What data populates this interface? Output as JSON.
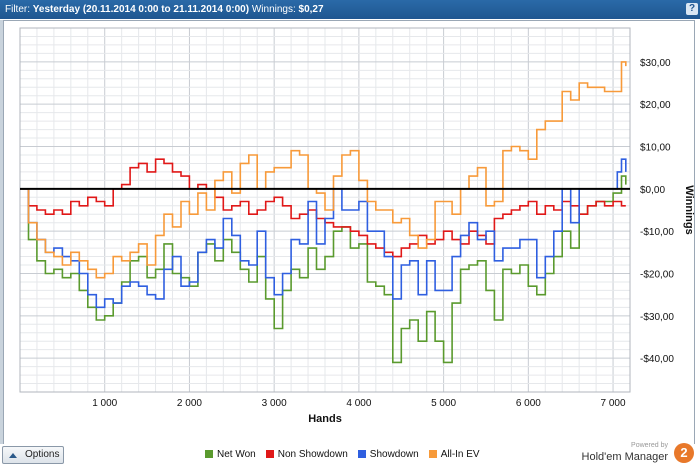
{
  "titlebar": {
    "filter_label": "Filter:",
    "filter_value": "Yesterday (20.11.2014 0:00 to 21.11.2014 0:00)",
    "winnings_label": "Winnings:",
    "winnings_value": "$0,27",
    "help": "?"
  },
  "options_label": "Options",
  "branding": {
    "powered_by": "Powered by",
    "product": "Hold'em Manager",
    "logo_text": "2"
  },
  "colors": {
    "net_won": "#5a9a2e",
    "non_showdown": "#e01818",
    "showdown": "#2f5fe0",
    "allin_ev": "#f79a3a",
    "zero_line": "#000000"
  },
  "chart_data": {
    "type": "line",
    "xlabel": "Hands",
    "ylabel": "Winnings",
    "xlim": [
      0,
      7200
    ],
    "ylim": [
      -48,
      38
    ],
    "x_ticks": [
      1000,
      2000,
      3000,
      4000,
      5000,
      6000,
      7000
    ],
    "x_tick_labels": [
      "1 000",
      "2 000",
      "3 000",
      "4 000",
      "5 000",
      "6 000",
      "7 000"
    ],
    "y_ticks": [
      30,
      20,
      10,
      0,
      -10,
      -20,
      -30,
      -40
    ],
    "y_tick_labels": [
      "$30,00",
      "$20,00",
      "$10,00",
      "$0,00",
      "-$10,00",
      "-$20,00",
      "-$30,00",
      "-$40,00"
    ],
    "grid": true,
    "legend_position": "bottom",
    "series": [
      {
        "name": "Net Won",
        "color": "#5a9a2e",
        "x": [
          0,
          100,
          200,
          300,
          400,
          500,
          600,
          700,
          800,
          900,
          1000,
          1100,
          1200,
          1300,
          1400,
          1500,
          1600,
          1700,
          1800,
          1900,
          2000,
          2100,
          2200,
          2300,
          2400,
          2500,
          2600,
          2700,
          2800,
          2900,
          3000,
          3100,
          3200,
          3300,
          3400,
          3500,
          3600,
          3700,
          3800,
          3900,
          4000,
          4100,
          4200,
          4300,
          4400,
          4500,
          4600,
          4700,
          4800,
          4900,
          5000,
          5100,
          5200,
          5300,
          5400,
          5500,
          5600,
          5700,
          5800,
          5900,
          6000,
          6100,
          6200,
          6300,
          6400,
          6500,
          6600,
          6700,
          6800,
          6900,
          7000,
          7100,
          7150
        ],
        "y": [
          0,
          -12,
          -17,
          -20,
          -19,
          -21,
          -20,
          -24,
          -28,
          -31,
          -30,
          -27,
          -22,
          -17,
          -16,
          -21,
          -19,
          -13,
          -20,
          -21,
          -23,
          -15,
          -13,
          -17,
          -12,
          -15,
          -19,
          -22,
          -16,
          -26,
          -33,
          -24,
          -19,
          -21,
          -14,
          -19,
          -16,
          -10,
          -9,
          -14,
          -13,
          -22,
          -23,
          -25,
          -41,
          -33,
          -31,
          -36,
          -29,
          -36,
          -41,
          -27,
          -19,
          -18,
          -17,
          -24,
          -31,
          -19,
          -20,
          -18,
          -23,
          -25,
          -20,
          -16,
          -10,
          -14,
          -6,
          -4,
          -3,
          -3,
          -1,
          3,
          1
        ]
      },
      {
        "name": "Non Showdown",
        "color": "#e01818",
        "x": [
          0,
          100,
          200,
          300,
          400,
          500,
          600,
          700,
          800,
          900,
          1000,
          1100,
          1200,
          1300,
          1400,
          1500,
          1600,
          1700,
          1800,
          1900,
          2000,
          2100,
          2200,
          2300,
          2400,
          2500,
          2600,
          2700,
          2800,
          2900,
          3000,
          3100,
          3200,
          3300,
          3400,
          3500,
          3600,
          3700,
          3800,
          3900,
          4000,
          4100,
          4200,
          4300,
          4400,
          4500,
          4600,
          4700,
          4800,
          4900,
          5000,
          5100,
          5200,
          5300,
          5400,
          5500,
          5600,
          5700,
          5800,
          5900,
          6000,
          6100,
          6200,
          6300,
          6400,
          6500,
          6600,
          6700,
          6800,
          6900,
          7000,
          7100,
          7150
        ],
        "y": [
          0,
          -4,
          -5,
          -6,
          -5,
          -6,
          -3,
          -4,
          -2,
          -3,
          -4,
          0,
          1,
          5,
          6,
          4,
          7,
          6,
          4,
          3,
          0,
          1,
          0,
          -2,
          -5,
          -4,
          -3,
          -6,
          -5,
          -3,
          -2,
          -4,
          -7,
          -6,
          -5,
          -7,
          -8,
          -9,
          -9,
          -10,
          -11,
          -13,
          -14,
          -15,
          -16,
          -14,
          -13,
          -11,
          -13,
          -12,
          -10,
          -12,
          -13,
          -10,
          -11,
          -13,
          -7,
          -6,
          -5,
          -4,
          -3,
          -6,
          -4,
          -5,
          -3,
          -4,
          -6,
          -4,
          -3,
          -4,
          -3,
          -4,
          -4
        ]
      },
      {
        "name": "Showdown",
        "color": "#2f5fe0",
        "x": [
          0,
          100,
          200,
          300,
          400,
          500,
          600,
          700,
          800,
          900,
          1000,
          1100,
          1200,
          1300,
          1400,
          1500,
          1600,
          1700,
          1800,
          1900,
          2000,
          2100,
          2200,
          2300,
          2400,
          2500,
          2600,
          2700,
          2800,
          2900,
          3000,
          3100,
          3200,
          3300,
          3400,
          3500,
          3600,
          3700,
          3800,
          3900,
          4000,
          4100,
          4200,
          4300,
          4400,
          4500,
          4600,
          4700,
          4800,
          4900,
          5000,
          5100,
          5200,
          5300,
          5400,
          5500,
          5600,
          5700,
          5800,
          5900,
          6000,
          6100,
          6200,
          6300,
          6400,
          6500,
          6600,
          6700,
          6800,
          6900,
          7000,
          7050,
          7100,
          7150
        ],
        "y": [
          0,
          -8,
          -12,
          -15,
          -14,
          -16,
          -17,
          -20,
          -25,
          -28,
          -26,
          -27,
          -23,
          -22,
          -23,
          -25,
          -26,
          -19,
          -16,
          -23,
          -22,
          -15,
          -12,
          -14,
          -7,
          -11,
          -17,
          -18,
          -10,
          -21,
          -25,
          -20,
          -12,
          -13,
          -3,
          -13,
          -7,
          0,
          -5,
          -5,
          -3,
          -10,
          -10,
          -16,
          -26,
          -18,
          -17,
          -25,
          -17,
          -24,
          -24,
          -16,
          -11,
          -8,
          -12,
          -10,
          -17,
          -14,
          -14,
          -12,
          -12,
          -21,
          -16,
          -10,
          0,
          -8,
          0,
          0,
          0,
          0,
          0,
          4,
          7,
          4
        ]
      },
      {
        "name": "All-In EV",
        "color": "#f79a3a",
        "x": [
          0,
          100,
          200,
          300,
          400,
          500,
          600,
          700,
          800,
          900,
          1000,
          1100,
          1200,
          1300,
          1400,
          1500,
          1600,
          1700,
          1800,
          1900,
          2000,
          2100,
          2200,
          2300,
          2400,
          2500,
          2600,
          2700,
          2800,
          2900,
          3000,
          3100,
          3200,
          3300,
          3400,
          3500,
          3600,
          3700,
          3800,
          3900,
          4000,
          4100,
          4200,
          4300,
          4400,
          4500,
          4600,
          4700,
          4800,
          4900,
          5000,
          5100,
          5200,
          5300,
          5400,
          5500,
          5600,
          5700,
          5800,
          5900,
          6000,
          6100,
          6200,
          6300,
          6400,
          6500,
          6600,
          6700,
          6800,
          6900,
          7000,
          7100,
          7150
        ],
        "y": [
          0,
          -8,
          -12,
          -15,
          -16,
          -18,
          -15,
          -17,
          -19,
          -21,
          -20,
          -16,
          -17,
          -15,
          -13,
          -18,
          -11,
          -6,
          -9,
          -3,
          -6,
          -1,
          -5,
          2,
          4,
          -1,
          6,
          8,
          0,
          4,
          5,
          5,
          9,
          8,
          0,
          -1,
          -5,
          3,
          8,
          9,
          2,
          -3,
          -5,
          -5,
          -8,
          -7,
          -11,
          -14,
          -12,
          -3,
          -3,
          -6,
          0,
          3,
          5,
          -4,
          -3,
          9,
          10,
          9,
          7,
          14,
          16,
          16,
          23,
          21,
          25,
          24,
          24,
          23,
          23,
          30,
          29
        ]
      }
    ]
  }
}
